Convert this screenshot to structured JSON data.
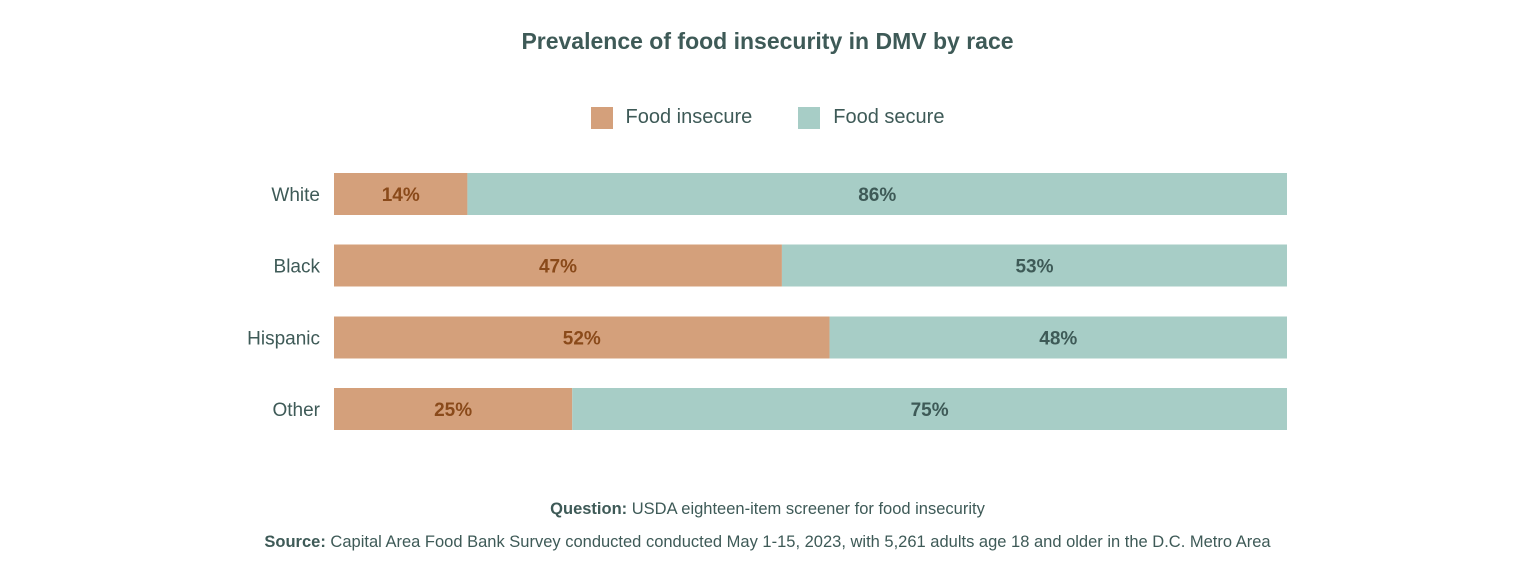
{
  "chart_data": {
    "type": "bar",
    "orientation": "horizontal",
    "stacked": true,
    "title": "Prevalence of food insecurity in DMV by race",
    "categories": [
      "White",
      "Black",
      "Hispanic",
      "Other"
    ],
    "series": [
      {
        "name": "Food insecure",
        "values": [
          14,
          47,
          52,
          25
        ],
        "labels": [
          "14%",
          "47%",
          "52%",
          "25%"
        ],
        "color": "#d4a07b",
        "label_color": "#8a4a1a"
      },
      {
        "name": "Food secure",
        "values": [
          86,
          53,
          48,
          75
        ],
        "labels": [
          "86%",
          "53%",
          "48%",
          "75%"
        ],
        "color": "#a7cdc6",
        "label_color": "#3e5a57"
      }
    ],
    "xlim": [
      0,
      100
    ],
    "grid": false,
    "legend_position": "top-center"
  },
  "footer": {
    "question_label": "Question:",
    "question_text": "USDA eighteen-item screener for food insecurity",
    "source_label": "Source:",
    "source_text": "Capital Area Food Bank Survey conducted conducted May 1-15, 2023, with 5,261 adults age 18 and older in the D.C. Metro Area"
  }
}
